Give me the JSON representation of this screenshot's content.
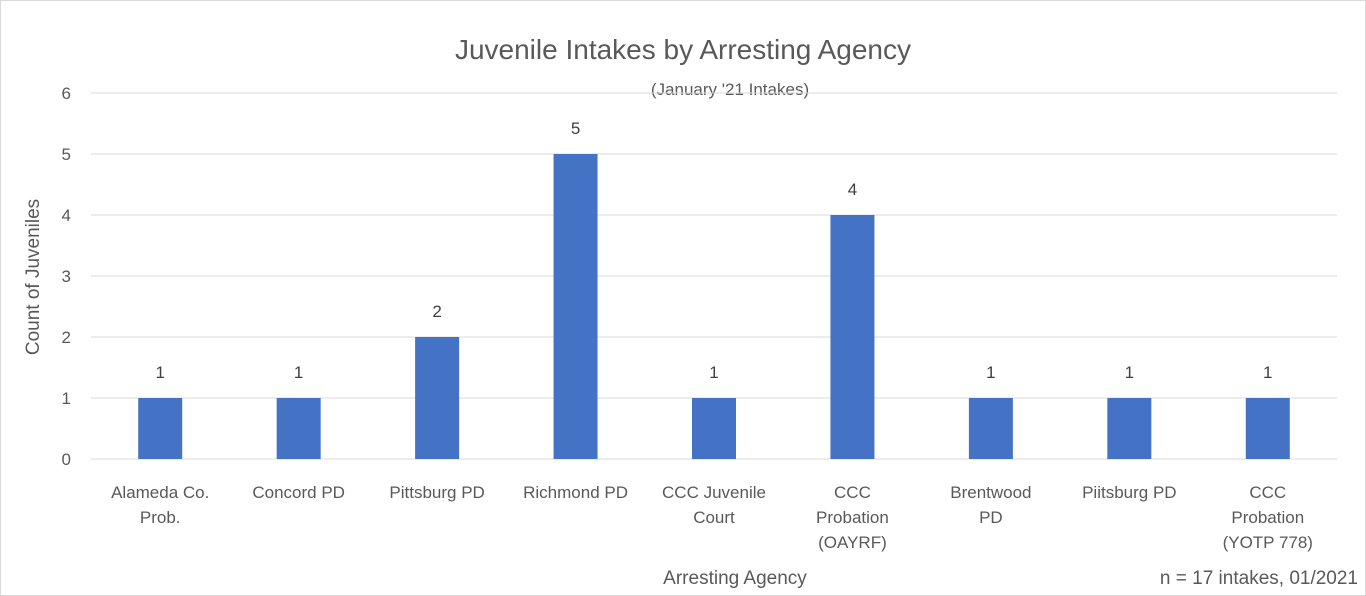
{
  "chart_data": {
    "type": "bar",
    "title": "Juvenile Intakes by Arresting Agency",
    "subtitle": "(January '21 Intakes)",
    "xlabel": "Arresting Agency",
    "ylabel": "Count of Juveniles",
    "ylim": [
      0,
      6
    ],
    "yticks": [
      0,
      1,
      2,
      3,
      4,
      5,
      6
    ],
    "grid": true,
    "legend": "none",
    "categories": [
      "Alameda Co. Prob.",
      "Concord PD",
      "Pittsburg PD",
      "Richmond PD",
      "CCC Juvenile Court",
      "CCC Probation (OAYRF)",
      "Brentwood PD",
      "Piitsburg PD",
      "CCC Probation (YOTP 778)"
    ],
    "category_lines": [
      [
        "Alameda Co.",
        "Prob."
      ],
      [
        "Concord PD"
      ],
      [
        "Pittsburg PD"
      ],
      [
        "Richmond PD"
      ],
      [
        "CCC Juvenile",
        "Court"
      ],
      [
        "CCC",
        "Probation",
        "(OAYRF)"
      ],
      [
        "Brentwood",
        "PD"
      ],
      [
        "Piitsburg PD"
      ],
      [
        "CCC",
        "Probation",
        "(YOTP 778)"
      ]
    ],
    "values": [
      1,
      1,
      2,
      5,
      1,
      4,
      1,
      1,
      1
    ],
    "data_labels": [
      "1",
      "1",
      "2",
      "5",
      "1",
      "4",
      "1",
      "1",
      "1"
    ],
    "bar_color": "#4472c4",
    "footnote": "n = 17 intakes, 01/2021"
  }
}
